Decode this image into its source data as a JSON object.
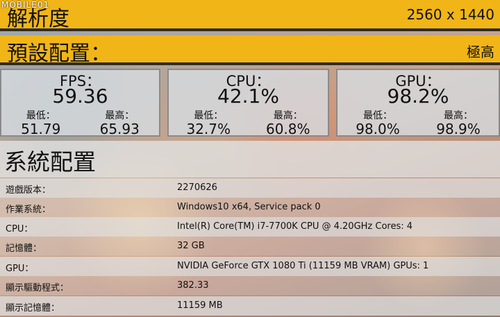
{
  "watermark": "MOBILE01",
  "resolution": {
    "label": "解析度",
    "value": "2560 x 1440"
  },
  "preset": {
    "label": "預設配置：",
    "value": "極高"
  },
  "stats": [
    {
      "title": "FPS：",
      "value": "59.36",
      "min_label": "最低：",
      "min": "51.79",
      "max_label": "最高：",
      "max": "65.93"
    },
    {
      "title": "CPU：",
      "value": "42.1%",
      "min_label": "最低：",
      "min": "32.7%",
      "max_label": "最高：",
      "max": "60.8%"
    },
    {
      "title": "GPU：",
      "value": "98.2%",
      "min_label": "最低：",
      "min": "98.0%",
      "max_label": "最高：",
      "max": "98.9%"
    }
  ],
  "system": {
    "title": "系統配置",
    "rows": [
      {
        "key": "遊戲版本：",
        "value": "2270626"
      },
      {
        "key": "作業系統：",
        "value": "Windows10 x64, Service pack 0"
      },
      {
        "key": "CPU：",
        "value": "Intel(R) Core(TM) i7-7700K CPU @ 4.20GHz Cores: 4"
      },
      {
        "key": "記憶體：",
        "value": "32 GB"
      },
      {
        "key": "GPU：",
        "value": "NVIDIA GeForce GTX 1080 Ti (11159 MB VRAM) GPUs: 1"
      },
      {
        "key": "顯示驅動程式：",
        "value": "382.33"
      },
      {
        "key": "顯示記憶體：",
        "value": "11159 MB"
      }
    ]
  }
}
